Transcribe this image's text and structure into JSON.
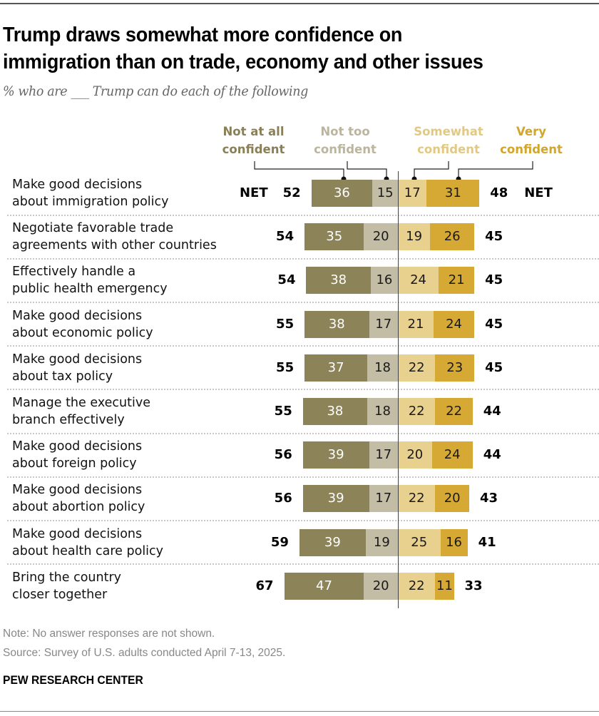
{
  "header": {
    "title_line1": "Trump draws somewhat more confidence on",
    "title_line2": "immigration than on trade, economy and other issues",
    "subtitle": "% who are ___ Trump can do each of the following"
  },
  "colors": {
    "not_at_all": "#8c8359",
    "not_too": "#c4bda6",
    "somewhat": "#e8d08e",
    "very": "#d5a933",
    "legend_not_at_all": "#8a8057",
    "legend_not_too": "#bcb59e",
    "legend_somewhat": "#e2c983",
    "legend_very": "#d2a62b"
  },
  "chart_data": {
    "type": "bar",
    "orientation": "horizontal-diverging",
    "title": "Trump draws somewhat more confidence on immigration than on trade, economy and other issues",
    "subtitle": "% who are ___ Trump can do each of the following",
    "legend": {
      "entries": [
        {
          "key": "not_at_all",
          "line1": "Not at all",
          "line2": "confident"
        },
        {
          "key": "not_too",
          "line1": "Not too",
          "line2": "confident"
        },
        {
          "key": "somewhat",
          "line1": "Somewhat",
          "line2": "confident"
        },
        {
          "key": "very",
          "line1": "Very",
          "line2": "confident"
        }
      ],
      "placement": "top"
    },
    "net_label": "NET",
    "categories": [
      [
        "Make good decisions",
        "about immigration policy"
      ],
      [
        "Negotiate favorable trade",
        "agreements with other countries"
      ],
      [
        "Effectively handle a",
        "public health emergency"
      ],
      [
        "Make good decisions",
        "about economic policy"
      ],
      [
        "Make good decisions",
        "about tax policy"
      ],
      [
        "Manage the executive",
        "branch effectively"
      ],
      [
        "Make good decisions",
        "about foreign policy"
      ],
      [
        "Make good decisions",
        "about abortion policy"
      ],
      [
        "Make good decisions",
        "about health care policy"
      ],
      [
        "Bring the country",
        "closer together"
      ]
    ],
    "series": [
      {
        "name": "Not at all confident",
        "key": "not_at_all",
        "values": [
          36,
          35,
          38,
          38,
          37,
          38,
          39,
          39,
          39,
          47
        ]
      },
      {
        "name": "Not too confident",
        "key": "not_too",
        "values": [
          15,
          20,
          16,
          17,
          18,
          18,
          17,
          17,
          19,
          20
        ]
      },
      {
        "name": "Somewhat confident",
        "key": "somewhat",
        "values": [
          17,
          19,
          24,
          21,
          22,
          22,
          20,
          22,
          25,
          22
        ]
      },
      {
        "name": "Very confident",
        "key": "very",
        "values": [
          31,
          26,
          21,
          24,
          23,
          22,
          24,
          20,
          16,
          11
        ]
      }
    ],
    "net_not_confident": [
      52,
      54,
      54,
      55,
      55,
      55,
      56,
      56,
      59,
      67
    ],
    "net_confident": [
      48,
      45,
      45,
      45,
      45,
      44,
      44,
      43,
      41,
      33
    ]
  },
  "footer": {
    "note": "Note: No answer responses are not shown.",
    "source": "Source: Survey of U.S. adults conducted April 7-13, 2025.",
    "brand": "PEW RESEARCH CENTER"
  }
}
